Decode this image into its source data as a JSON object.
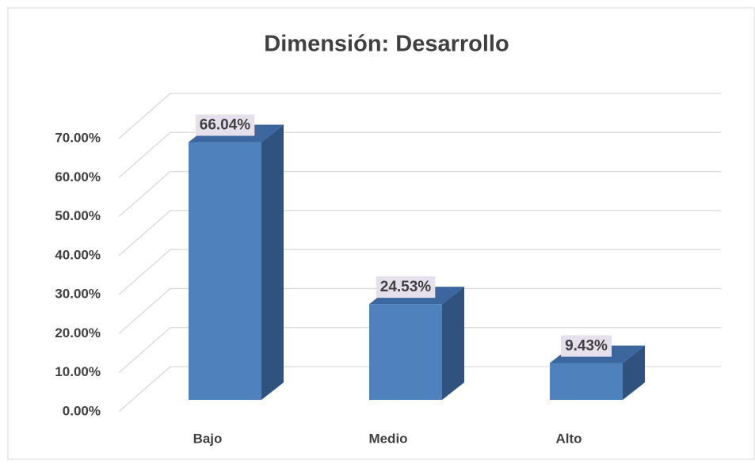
{
  "chart_data": {
    "type": "bar3d",
    "title": "Dimensión: Desarrollo",
    "categories": [
      "Bajo",
      "Medio",
      "Alto"
    ],
    "values": [
      66.04,
      24.53,
      9.43
    ],
    "value_labels": [
      "66.04%",
      "24.53%",
      "9.43%"
    ],
    "color": "#4f81bd",
    "ylim": [
      0,
      70
    ],
    "yticks": [
      {
        "value": 0,
        "label": "0.00%"
      },
      {
        "value": 10,
        "label": "10.00%"
      },
      {
        "value": 20,
        "label": "20.00%"
      },
      {
        "value": 30,
        "label": "30.00%"
      },
      {
        "value": 40,
        "label": "40.00%"
      },
      {
        "value": 50,
        "label": "50.00%"
      },
      {
        "value": 60,
        "label": "60.00%"
      },
      {
        "value": 70,
        "label": "70.00%"
      }
    ],
    "grid": true
  }
}
